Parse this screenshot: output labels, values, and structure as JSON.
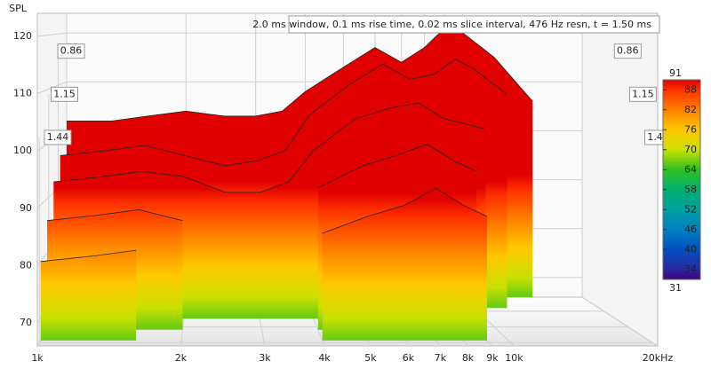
{
  "chart_data": {
    "type": "waterfall",
    "title": "2.0 ms window, 0.1 ms rise time, 0.02 ms slice interval, 476 Hz resn, t = 1.50 ms",
    "y_label": "SPL",
    "x": [
      1000,
      1300,
      1600,
      2000,
      2500,
      3000,
      3500,
      4000,
      5000,
      6000,
      7000,
      8000,
      9000,
      10000,
      12000,
      15000,
      20000
    ],
    "xlim": [
      1000,
      20000
    ],
    "log_x": true,
    "xticks": [
      {
        "value": 1000,
        "label": "1k"
      },
      {
        "value": 2000,
        "label": "2k"
      },
      {
        "value": 3000,
        "label": "3k"
      },
      {
        "value": 4000,
        "label": "4k"
      },
      {
        "value": 5000,
        "label": "5k"
      },
      {
        "value": 6000,
        "label": "6k"
      },
      {
        "value": 7000,
        "label": "7k"
      },
      {
        "value": 8000,
        "label": "8k"
      },
      {
        "value": 9000,
        "label": "9k"
      },
      {
        "value": 10000,
        "label": "10k"
      },
      {
        "value": 20000,
        "label": "20kHz"
      }
    ],
    "ylim": [
      66,
      124
    ],
    "yticks": [
      70,
      80,
      90,
      100,
      110,
      120
    ],
    "zlim": [
      0.6,
      1.5
    ],
    "zticks": [
      0.86,
      1.15,
      1.44
    ],
    "colorlim": [
      31,
      91
    ],
    "colorticks": [
      91,
      88,
      82,
      76,
      70,
      64,
      58,
      52,
      46,
      40,
      34,
      31
    ],
    "colorscale": [
      "#e00000",
      "#ff3000",
      "#ff8000",
      "#ffc800",
      "#c8e000",
      "#30c020",
      "#00b070",
      "#00a0a0",
      "#0080c0",
      "#0050c0",
      "#2828a0",
      "#400080"
    ],
    "series": [
      {
        "z": 0.6,
        "values": [
          102,
          102,
          103,
          104,
          103,
          103,
          104,
          108,
          113,
          117,
          114,
          117,
          121,
          120,
          115,
          106,
          null
        ]
      },
      {
        "z": 0.8,
        "values": [
          96,
          97,
          98,
          96,
          94,
          95,
          97,
          104,
          110,
          114,
          111,
          112,
          115,
          113,
          108,
          null,
          null
        ]
      },
      {
        "z": 1.0,
        "values": [
          92,
          93,
          94,
          93,
          90,
          90,
          92,
          98,
          104,
          106,
          107,
          104,
          103,
          102,
          null,
          null,
          null
        ]
      },
      {
        "z": 1.2,
        "values": [
          86,
          87,
          88,
          86,
          null,
          null,
          null,
          92,
          96,
          98,
          100,
          97,
          95,
          null,
          null,
          null,
          null
        ]
      },
      {
        "z": 1.4,
        "values": [
          80,
          81,
          82,
          null,
          null,
          null,
          null,
          85,
          88,
          90,
          93,
          90,
          88,
          null,
          null,
          null,
          null
        ]
      }
    ]
  }
}
